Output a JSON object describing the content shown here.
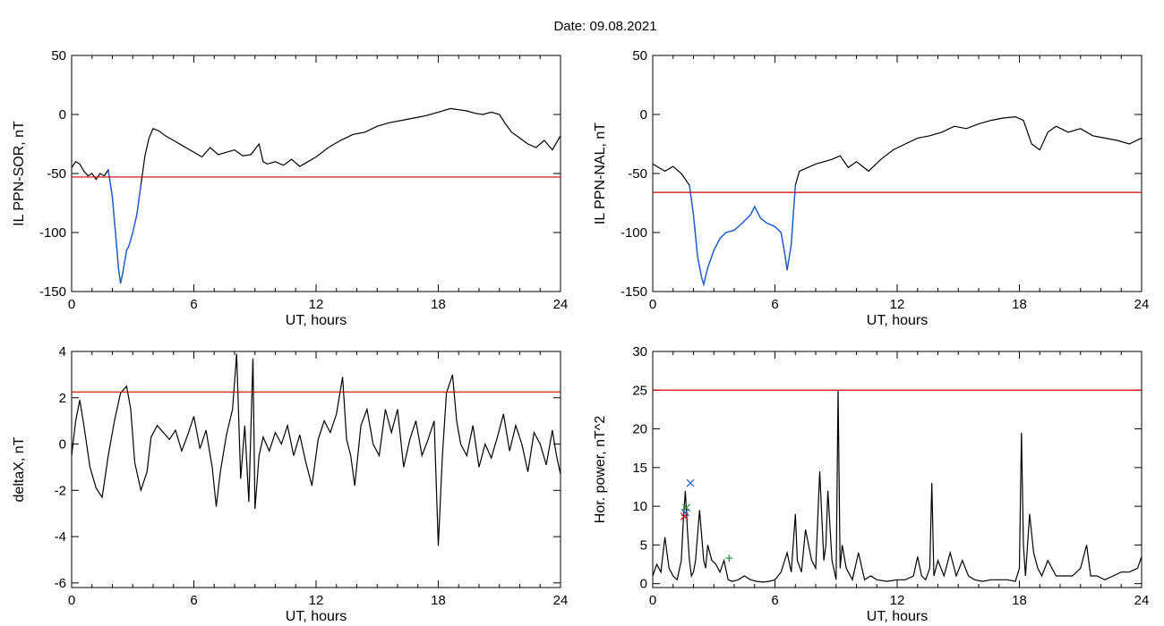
{
  "figure": {
    "title": "Date:  09.08.2021"
  },
  "chart_data": [
    {
      "type": "line",
      "ylabel": "IL PPN-SOR, nT",
      "xlabel": "UT, hours",
      "xlim": [
        0,
        24
      ],
      "ylim": [
        -150,
        50
      ],
      "xticks": [
        0,
        6,
        12,
        18,
        24
      ],
      "yticks": [
        -150,
        -100,
        -50,
        0,
        50
      ],
      "threshold": -53,
      "colors": {
        "line": "#000000",
        "highlight": "#1f5fd6",
        "threshold": "#d40000"
      },
      "series": [
        {
          "x": [
            0,
            0.2,
            0.4,
            0.6,
            0.8,
            1.0,
            1.2,
            1.4,
            1.6,
            1.8,
            2.0,
            2.2,
            2.3,
            2.4,
            2.5,
            2.6,
            2.7,
            2.8,
            3.0,
            3.2,
            3.4,
            3.6,
            3.8,
            4.0,
            4.3,
            4.6,
            5.0,
            5.4,
            5.8,
            6.0,
            6.4,
            6.8,
            7.2,
            7.6,
            8.0,
            8.4,
            8.8,
            9.2,
            9.4,
            9.6,
            10.0,
            10.4,
            10.8,
            11.2,
            11.6,
            12.0,
            12.6,
            13.2,
            13.8,
            14.4,
            15.0,
            15.6,
            16.2,
            16.8,
            17.4,
            18.0,
            18.6,
            19.0,
            19.4,
            19.8,
            20.2,
            20.6,
            21.0,
            21.3,
            21.6,
            22.0,
            22.4,
            22.8,
            23.2,
            23.6,
            24.0
          ],
          "y": [
            -45,
            -40,
            -42,
            -48,
            -52,
            -50,
            -55,
            -50,
            -52,
            -47,
            -70,
            -110,
            -130,
            -143,
            -135,
            -125,
            -115,
            -112,
            -100,
            -85,
            -60,
            -35,
            -20,
            -12,
            -14,
            -18,
            -22,
            -26,
            -30,
            -32,
            -36,
            -28,
            -34,
            -32,
            -30,
            -35,
            -34,
            -25,
            -40,
            -42,
            -40,
            -43,
            -38,
            -44,
            -40,
            -36,
            -28,
            -22,
            -17,
            -15,
            -10,
            -7,
            -5,
            -3,
            -1,
            2,
            5,
            4,
            3,
            1,
            0,
            2,
            0,
            -8,
            -15,
            -20,
            -25,
            -28,
            -22,
            -30,
            -18
          ]
        }
      ],
      "highlight_range": [
        1.8,
        3.5
      ]
    },
    {
      "type": "line",
      "ylabel": "IL PPN-NAL, nT",
      "xlabel": "UT, hours",
      "xlim": [
        0,
        24
      ],
      "ylim": [
        -150,
        50
      ],
      "xticks": [
        0,
        6,
        12,
        18,
        24
      ],
      "yticks": [
        -150,
        -100,
        -50,
        0,
        50
      ],
      "threshold": -66,
      "colors": {
        "line": "#000000",
        "highlight": "#1f5fd6",
        "threshold": "#d40000"
      },
      "series": [
        {
          "x": [
            0,
            0.3,
            0.6,
            1.0,
            1.4,
            1.8,
            2.0,
            2.2,
            2.4,
            2.5,
            2.7,
            3.0,
            3.3,
            3.6,
            4.0,
            4.4,
            4.8,
            5.0,
            5.3,
            5.6,
            6.0,
            6.3,
            6.5,
            6.6,
            6.8,
            7.0,
            7.2,
            7.6,
            8.0,
            8.4,
            8.8,
            9.2,
            9.6,
            10.0,
            10.6,
            11.2,
            11.8,
            12.4,
            13.0,
            13.6,
            14.2,
            14.8,
            15.4,
            16.0,
            16.6,
            17.2,
            17.8,
            18.2,
            18.6,
            19.0,
            19.4,
            19.8,
            20.4,
            21.0,
            21.6,
            22.2,
            22.8,
            23.4,
            24.0
          ],
          "y": [
            -42,
            -45,
            -48,
            -44,
            -50,
            -60,
            -85,
            -120,
            -138,
            -144,
            -130,
            -115,
            -105,
            -100,
            -98,
            -92,
            -85,
            -78,
            -88,
            -92,
            -95,
            -100,
            -120,
            -132,
            -110,
            -60,
            -48,
            -45,
            -42,
            -40,
            -38,
            -35,
            -45,
            -40,
            -48,
            -38,
            -30,
            -25,
            -20,
            -18,
            -15,
            -10,
            -12,
            -8,
            -5,
            -3,
            -2,
            -5,
            -25,
            -30,
            -15,
            -10,
            -15,
            -12,
            -18,
            -20,
            -22,
            -25,
            -20
          ]
        }
      ],
      "highlight_range": [
        1.8,
        7.0
      ]
    },
    {
      "type": "line",
      "ylabel": "deltaX, nT",
      "xlabel": "UT, hours",
      "xlim": [
        0,
        24
      ],
      "ylim": [
        -6.2,
        4
      ],
      "xticks": [
        0,
        6,
        12,
        18,
        24
      ],
      "yticks": [
        -6,
        -4,
        -2,
        0,
        2,
        4
      ],
      "threshold": 2.25,
      "colors": {
        "line": "#000000",
        "threshold": "#d40000"
      },
      "series": [
        {
          "x": [
            0,
            0.2,
            0.4,
            0.6,
            0.9,
            1.2,
            1.5,
            1.8,
            2.1,
            2.4,
            2.7,
            2.9,
            3.1,
            3.4,
            3.7,
            3.9,
            4.2,
            4.5,
            4.8,
            5.1,
            5.4,
            5.7,
            6.0,
            6.3,
            6.6,
            6.9,
            7.1,
            7.3,
            7.6,
            7.9,
            8.1,
            8.3,
            8.5,
            8.7,
            8.9,
            9.0,
            9.2,
            9.4,
            9.7,
            10.0,
            10.3,
            10.6,
            10.9,
            11.2,
            11.5,
            11.8,
            12.1,
            12.4,
            12.7,
            13.0,
            13.3,
            13.5,
            13.7,
            13.9,
            14.2,
            14.5,
            14.8,
            15.1,
            15.4,
            15.7,
            16.0,
            16.3,
            16.6,
            16.9,
            17.2,
            17.5,
            17.8,
            18.0,
            18.2,
            18.4,
            18.7,
            18.9,
            19.1,
            19.4,
            19.7,
            20.0,
            20.3,
            20.6,
            20.9,
            21.2,
            21.5,
            21.8,
            22.1,
            22.4,
            22.7,
            23.0,
            23.3,
            23.6,
            23.8,
            24.0
          ],
          "y": [
            -0.5,
            1.0,
            1.9,
            0.8,
            -1.0,
            -1.9,
            -2.3,
            -0.5,
            1.0,
            2.2,
            2.5,
            1.5,
            -0.8,
            -2.0,
            -1.2,
            0.3,
            0.8,
            0.5,
            0.2,
            0.6,
            -0.3,
            0.4,
            1.2,
            -0.2,
            0.6,
            -1.0,
            -2.7,
            -1.2,
            0.4,
            1.5,
            3.9,
            -1.5,
            0.8,
            -2.5,
            3.7,
            -2.8,
            -0.5,
            0.3,
            -0.3,
            0.5,
            0.0,
            0.8,
            -0.5,
            0.4,
            -0.8,
            -1.8,
            0.2,
            1.0,
            0.5,
            1.3,
            2.9,
            0.2,
            -0.5,
            -1.8,
            0.8,
            1.5,
            0.0,
            -0.5,
            1.5,
            0.5,
            1.5,
            -1.0,
            0.2,
            1.0,
            -0.5,
            0.2,
            1.0,
            -4.4,
            -0.5,
            2.2,
            3.0,
            1.0,
            0.0,
            -0.5,
            0.8,
            -1.0,
            0.0,
            -0.6,
            0.3,
            1.3,
            -0.3,
            0.8,
            0.0,
            -1.2,
            0.5,
            0.0,
            -0.9,
            0.6,
            -0.5,
            -1.3
          ]
        }
      ]
    },
    {
      "type": "line",
      "ylabel": "Hor. power, nT^2",
      "xlabel": "UT, hours",
      "xlim": [
        0,
        24
      ],
      "ylim": [
        -0.5,
        30
      ],
      "xticks": [
        0,
        6,
        12,
        18,
        24
      ],
      "yticks": [
        0,
        5,
        10,
        15,
        20,
        25,
        30
      ],
      "threshold": 25,
      "colors": {
        "line": "#000000",
        "threshold": "#d40000"
      },
      "series": [
        {
          "x": [
            0,
            0.2,
            0.4,
            0.6,
            0.8,
            1.0,
            1.2,
            1.4,
            1.5,
            1.6,
            1.7,
            1.8,
            1.9,
            2.0,
            2.1,
            2.3,
            2.5,
            2.6,
            2.7,
            2.9,
            3.1,
            3.3,
            3.5,
            3.7,
            3.9,
            4.2,
            4.5,
            4.8,
            5.1,
            5.4,
            5.7,
            6.0,
            6.3,
            6.6,
            6.8,
            7.0,
            7.1,
            7.3,
            7.5,
            7.8,
            8.0,
            8.2,
            8.4,
            8.5,
            8.6,
            8.8,
            9.0,
            9.1,
            9.2,
            9.3,
            9.5,
            9.8,
            10.1,
            10.4,
            10.7,
            11.0,
            11.5,
            12.0,
            12.4,
            12.8,
            13.0,
            13.2,
            13.4,
            13.6,
            13.7,
            13.8,
            14.0,
            14.3,
            14.6,
            14.9,
            15.2,
            15.5,
            15.8,
            16.2,
            16.6,
            17.0,
            17.4,
            17.8,
            18.0,
            18.1,
            18.2,
            18.3,
            18.5,
            18.7,
            18.9,
            19.1,
            19.4,
            19.8,
            20.2,
            20.6,
            21.0,
            21.3,
            21.5,
            21.8,
            22.2,
            22.6,
            23.0,
            23.4,
            23.8,
            24.0
          ],
          "y": [
            1,
            2.5,
            1.5,
            6,
            2,
            1,
            0.5,
            3,
            8,
            12,
            7,
            3,
            1,
            1.5,
            3,
            9.5,
            3,
            2,
            5,
            3,
            2.5,
            1.5,
            3,
            0.5,
            0.3,
            0.5,
            1,
            0.5,
            0.3,
            0.2,
            0.3,
            0.5,
            1.5,
            4,
            1.5,
            9,
            3,
            1.5,
            7,
            3,
            2,
            14.5,
            3,
            5,
            12,
            3,
            0.5,
            25,
            2,
            5,
            2,
            0.5,
            4,
            0.5,
            1,
            0.5,
            0.3,
            0.5,
            0.5,
            1,
            3.5,
            1,
            0.5,
            2,
            13,
            1,
            3,
            1,
            4,
            1,
            3,
            1,
            0.5,
            0.3,
            0.5,
            0.5,
            0.5,
            0.3,
            2,
            19.5,
            5,
            1,
            9,
            4,
            2,
            1,
            3,
            1,
            1,
            1,
            2,
            5,
            1,
            1,
            0.5,
            1,
            1.5,
            1.5,
            2,
            3.5
          ]
        }
      ],
      "markers": [
        {
          "x": 1.85,
          "y": 13,
          "symbol": "x",
          "color": "#1f5fd6"
        },
        {
          "x": 1.65,
          "y": 9.8,
          "symbol": "x",
          "color": "#1f8f3a"
        },
        {
          "x": 1.6,
          "y": 9.2,
          "symbol": "x",
          "color": "#1f5fd6"
        },
        {
          "x": 1.55,
          "y": 8.7,
          "symbol": "x",
          "color": "#d40000"
        },
        {
          "x": 3.75,
          "y": 3.3,
          "symbol": "+",
          "color": "#1f8f3a"
        }
      ]
    }
  ]
}
